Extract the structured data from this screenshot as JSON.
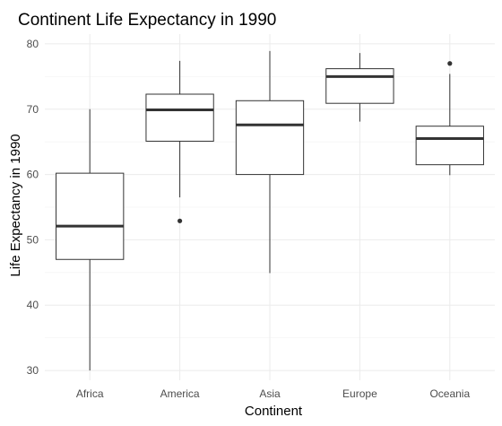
{
  "chart_data": {
    "type": "boxplot",
    "title": "Continent Life Expectancy in 1990",
    "xlabel": "Continent",
    "ylabel": "Life Expectancy in 1990",
    "ylim": [
      28.5,
      81.5
    ],
    "yticks": [
      30,
      40,
      50,
      60,
      70,
      80
    ],
    "categories": [
      "Africa",
      "America",
      "Asia",
      "Europe",
      "Oceania"
    ],
    "boxes": [
      {
        "category": "Africa",
        "min": 30.0,
        "q1": 47.0,
        "median": 52.1,
        "q3": 60.2,
        "max": 70.0,
        "outliers": []
      },
      {
        "category": "America",
        "min": 56.5,
        "q1": 65.1,
        "median": 69.9,
        "q3": 72.3,
        "max": 77.4,
        "outliers": [
          52.9
        ]
      },
      {
        "category": "Asia",
        "min": 44.9,
        "q1": 60.0,
        "median": 67.6,
        "q3": 71.3,
        "max": 78.9,
        "outliers": []
      },
      {
        "category": "Europe",
        "min": 68.1,
        "q1": 70.9,
        "median": 75.0,
        "q3": 76.2,
        "max": 78.6,
        "outliers": []
      },
      {
        "category": "Oceania",
        "min": 59.9,
        "q1": 61.5,
        "median": 65.5,
        "q3": 67.4,
        "max": 75.4,
        "outliers": [
          77.0
        ]
      }
    ],
    "grid": true,
    "legend": "none",
    "colors": {
      "box_stroke": "#333333",
      "box_fill": "#ffffff",
      "median": "#333333",
      "grid_major": "#ebebeb",
      "grid_minor": "#f5f5f5",
      "tick_text": "#4d4d4d",
      "title_text": "#000000"
    }
  }
}
